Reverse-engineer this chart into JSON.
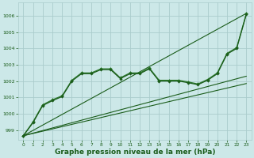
{
  "background_color": "#cce8e8",
  "grid_color": "#aacccc",
  "line_color_dark": "#1a5c1a",
  "line_color_mid": "#2d7a2d",
  "xlabel": "Graphe pression niveau de la mer (hPa)",
  "xlabel_fontsize": 6.5,
  "ylim": [
    998.4,
    1006.8
  ],
  "xlim": [
    -0.5,
    23.5
  ],
  "yticks": [
    999,
    1000,
    1001,
    1002,
    1003,
    1004,
    1005,
    1006
  ],
  "xticks": [
    0,
    1,
    2,
    3,
    4,
    5,
    6,
    7,
    8,
    9,
    10,
    11,
    12,
    13,
    14,
    15,
    16,
    17,
    18,
    19,
    20,
    21,
    22,
    23
  ],
  "series_wavy1": {
    "x": [
      0,
      1,
      2,
      3,
      4,
      5,
      6,
      7,
      8,
      9,
      10,
      11,
      12,
      13,
      14,
      15,
      16,
      17,
      18,
      19,
      20,
      21,
      22,
      23
    ],
    "y": [
      998.65,
      999.5,
      1000.55,
      1000.85,
      1001.1,
      1002.05,
      1002.5,
      1002.5,
      1002.75,
      1002.75,
      1002.2,
      1002.5,
      1002.5,
      1002.8,
      1002.05,
      1002.05,
      1002.05,
      1001.95,
      1001.82,
      1002.1,
      1002.5,
      1003.7,
      1004.05,
      1006.15
    ]
  },
  "series_wavy2": {
    "x": [
      0,
      1,
      2,
      3,
      4,
      5,
      6,
      7,
      8,
      9,
      10,
      11,
      12,
      13,
      14,
      15,
      16,
      17,
      18,
      19,
      20,
      21,
      22,
      23
    ],
    "y": [
      998.65,
      999.45,
      1000.5,
      1000.8,
      1001.05,
      1002.0,
      1002.45,
      1002.45,
      1002.7,
      1002.7,
      1002.15,
      1002.45,
      1002.45,
      1002.75,
      1002.0,
      1002.0,
      1002.0,
      1001.9,
      1001.78,
      1002.05,
      1002.45,
      1003.65,
      1004.0,
      1006.1
    ]
  },
  "trend_lines": [
    {
      "x": [
        0,
        23
      ],
      "y": [
        998.65,
        1006.15
      ]
    },
    {
      "x": [
        0,
        23
      ],
      "y": [
        998.65,
        1002.3
      ]
    },
    {
      "x": [
        0,
        23
      ],
      "y": [
        998.65,
        1001.85
      ]
    }
  ]
}
